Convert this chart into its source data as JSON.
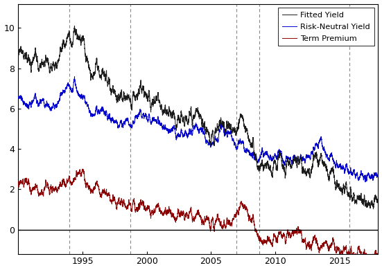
{
  "fitted_color": "#1a1a1a",
  "rn_color": "#0000cc",
  "tp_color": "#8b0000",
  "background_color": "#ffffff",
  "line_width": 0.7,
  "ylim": [
    -1.2,
    11.2
  ],
  "yticks": [
    0,
    2,
    4,
    6,
    8,
    10
  ],
  "xtick_years": [
    1995,
    2000,
    2005,
    2010,
    2015
  ],
  "vline_years": [
    1994.0,
    1998.75,
    2007.0,
    2008.75,
    2015.75
  ],
  "hline_y": 0,
  "start_year": 1990,
  "end_year": 2018,
  "seed": 17
}
